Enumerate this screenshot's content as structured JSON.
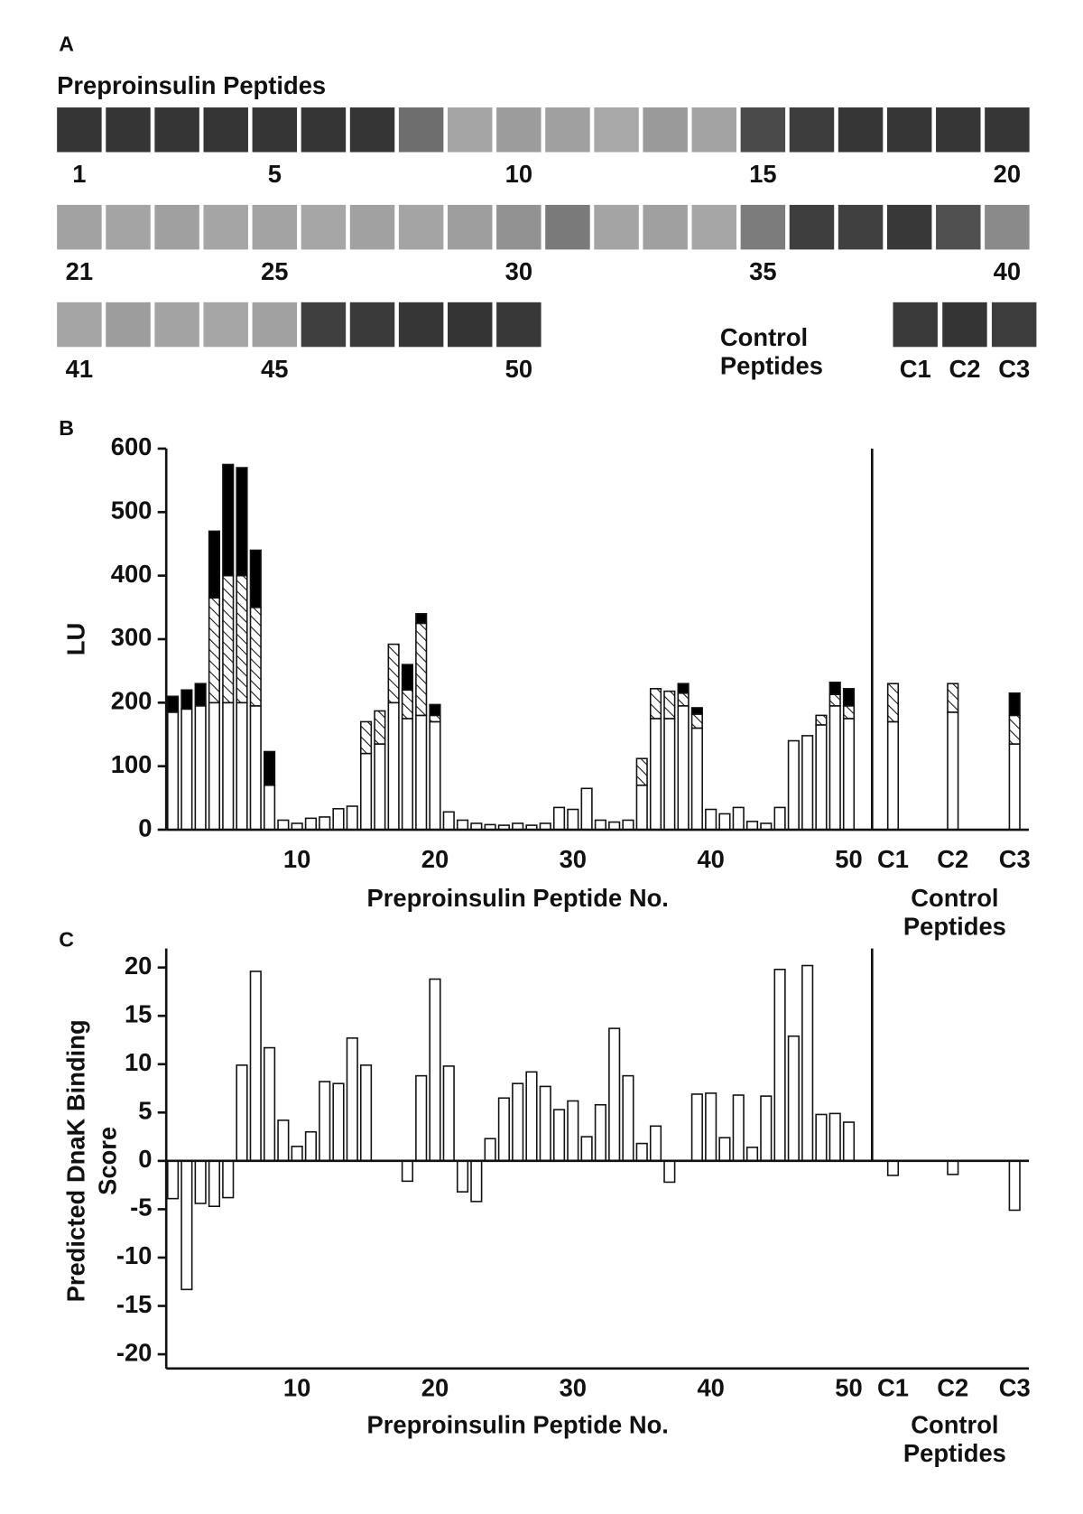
{
  "panel_a": {
    "label": "A",
    "title": "Preproinsulin Peptides",
    "rows": [
      {
        "spots": [
          "#353535",
          "#353535",
          "#353535",
          "#353535",
          "#353535",
          "#353535",
          "#353535",
          "#6e6e6e",
          "#a5a5a5",
          "#9c9c9c",
          "#a0a0a0",
          "#a8a8a8",
          "#9a9a9a",
          "#a3a3a3",
          "#4a4a4a",
          "#3c3c3c",
          "#363636",
          "#363636",
          "#363636",
          "#363636"
        ],
        "labels": [
          "1",
          null,
          null,
          null,
          "5",
          null,
          null,
          null,
          null,
          "10",
          null,
          null,
          null,
          null,
          "15",
          null,
          null,
          null,
          null,
          "20"
        ]
      },
      {
        "spots": [
          "#a2a2a2",
          "#a4a4a4",
          "#a0a0a0",
          "#a5a5a5",
          "#a3a3a3",
          "#a6a6a6",
          "#a1a1a1",
          "#a4a4a4",
          "#9e9e9e",
          "#929292",
          "#7a7a7a",
          "#a4a4a4",
          "#a0a0a0",
          "#a6a6a6",
          "#7c7c7c",
          "#3e3e3e",
          "#404040",
          "#383838",
          "#505050",
          "#8a8a8a"
        ],
        "labels": [
          "21",
          null,
          null,
          null,
          "25",
          null,
          null,
          null,
          null,
          "30",
          null,
          null,
          null,
          null,
          "35",
          null,
          null,
          null,
          null,
          "40"
        ]
      },
      {
        "spots": [
          "#a5a5a5",
          "#9d9d9d",
          "#a3a3a3",
          "#a6a6a6",
          "#a1a1a1",
          "#3f3f3f",
          "#3a3a3a",
          "#363636",
          "#343434",
          "#383838"
        ],
        "labels": [
          "41",
          null,
          null,
          null,
          "45",
          null,
          null,
          null,
          null,
          "50"
        ]
      }
    ],
    "controls": {
      "title": [
        "Control",
        "Peptides"
      ],
      "spots": [
        "#3a3a3a",
        "#343434",
        "#3c3c3c"
      ],
      "labels": [
        "C1",
        "C2",
        "C3"
      ]
    }
  },
  "chart_data": [
    {
      "type": "stacked_bar",
      "panel_label": "B",
      "ylabel": [
        "LU"
      ],
      "xlabel": "Preproinsulin Peptide No.",
      "group_label": [
        "Control",
        "Peptides"
      ],
      "categories": [
        null,
        null,
        null,
        null,
        null,
        null,
        null,
        null,
        null,
        "10",
        null,
        null,
        null,
        null,
        null,
        null,
        null,
        null,
        null,
        "20",
        null,
        null,
        null,
        null,
        null,
        null,
        null,
        null,
        null,
        "30",
        null,
        null,
        null,
        null,
        null,
        null,
        null,
        null,
        null,
        "40",
        null,
        null,
        null,
        null,
        null,
        null,
        null,
        null,
        null,
        "50",
        "C1",
        "C2",
        "C3"
      ],
      "ylim": [
        0,
        600
      ],
      "yticks": [
        0,
        100,
        200,
        300,
        400,
        500,
        600
      ],
      "series": [
        {
          "color": "#ffffff",
          "values": [
            185,
            190,
            195,
            200,
            200,
            200,
            195,
            70,
            15,
            10,
            18,
            20,
            33,
            37,
            120,
            135,
            200,
            175,
            180,
            170,
            28,
            15,
            10,
            8,
            7,
            10,
            7,
            10,
            35,
            32,
            65,
            15,
            12,
            15,
            70,
            175,
            175,
            195,
            160,
            32,
            25,
            35,
            13,
            10,
            35,
            140,
            148,
            165,
            195,
            175,
            170,
            185,
            135
          ]
        },
        {
          "color": "#ffffff",
          "hatch": true,
          "values": [
            0,
            0,
            0,
            165,
            200,
            200,
            155,
            0,
            0,
            0,
            0,
            0,
            0,
            0,
            50,
            52,
            92,
            45,
            145,
            10,
            0,
            0,
            0,
            0,
            0,
            0,
            0,
            0,
            0,
            0,
            0,
            0,
            0,
            0,
            42,
            47,
            43,
            20,
            22,
            0,
            0,
            0,
            0,
            0,
            0,
            0,
            0,
            15,
            18,
            20,
            60,
            45,
            45
          ]
        },
        {
          "color": "#000000",
          "values": [
            25,
            30,
            35,
            105,
            175,
            170,
            90,
            53,
            0,
            0,
            0,
            0,
            0,
            0,
            0,
            0,
            0,
            40,
            15,
            17,
            0,
            0,
            0,
            0,
            0,
            0,
            0,
            0,
            0,
            0,
            0,
            0,
            0,
            0,
            0,
            0,
            0,
            15,
            10,
            0,
            0,
            0,
            0,
            0,
            0,
            0,
            0,
            0,
            19,
            27,
            0,
            0,
            35
          ]
        }
      ]
    },
    {
      "type": "bar",
      "panel_label": "C",
      "ylabel": [
        "Predicted DnaK Binding",
        "Score"
      ],
      "xlabel": "Preproinsulin Peptide No.",
      "group_label": [
        "Control",
        "Peptides"
      ],
      "categories": [
        null,
        null,
        null,
        null,
        null,
        null,
        null,
        null,
        null,
        "10",
        null,
        null,
        null,
        null,
        null,
        null,
        null,
        null,
        null,
        "20",
        null,
        null,
        null,
        null,
        null,
        null,
        null,
        null,
        null,
        "30",
        null,
        null,
        null,
        null,
        null,
        null,
        null,
        null,
        null,
        "40",
        null,
        null,
        null,
        null,
        null,
        null,
        null,
        null,
        null,
        "50",
        "C1",
        "C2",
        "C3"
      ],
      "ylim": [
        -20,
        20
      ],
      "yticks": [
        -20,
        -15,
        -10,
        -5,
        0,
        5,
        10,
        15,
        20
      ],
      "color": "#ffffff",
      "values": [
        -3.9,
        -13.3,
        -4.4,
        -4.7,
        -3.8,
        9.9,
        19.6,
        11.7,
        4.2,
        1.5,
        3.0,
        8.2,
        8.0,
        12.7,
        9.9,
        0,
        0,
        -2.1,
        8.8,
        18.8,
        9.8,
        -3.2,
        -4.2,
        2.3,
        6.5,
        8.0,
        9.2,
        7.7,
        5.3,
        6.2,
        2.5,
        5.8,
        13.7,
        8.8,
        1.8,
        3.6,
        -2.2,
        0,
        6.9,
        7.0,
        2.4,
        6.8,
        1.4,
        6.7,
        19.8,
        12.9,
        20.2,
        4.8,
        4.9,
        4.0,
        -1.5,
        -1.4,
        -5.1
      ]
    }
  ]
}
